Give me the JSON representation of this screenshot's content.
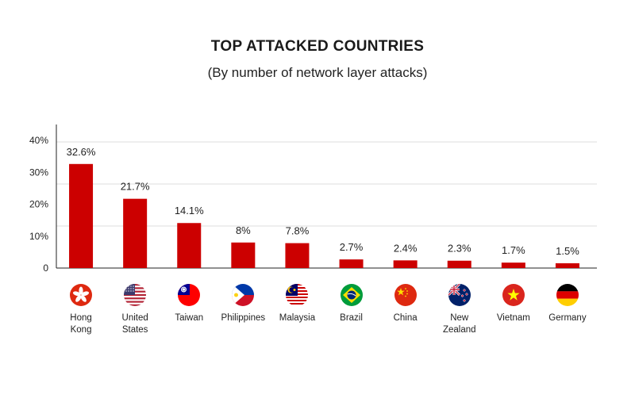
{
  "chart_data": {
    "type": "bar",
    "title": "TOP ATTACKED COUNTRIES",
    "subtitle": "(By number of network layer attacks)",
    "categories": [
      "Hong Kong",
      "United States",
      "Taiwan",
      "Philippines",
      "Malaysia",
      "Brazil",
      "China",
      "New Zealand",
      "Vietnam",
      "Germany"
    ],
    "category_lines": [
      [
        "Hong",
        "Kong"
      ],
      [
        "United",
        "States"
      ],
      [
        "Taiwan"
      ],
      [
        "Philippines"
      ],
      [
        "Malaysia"
      ],
      [
        "Brazil"
      ],
      [
        "China"
      ],
      [
        "New",
        "Zealand"
      ],
      [
        "Vietnam"
      ],
      [
        "Germany"
      ]
    ],
    "flag_icons": [
      "hong-kong-flag-icon",
      "united-states-flag-icon",
      "taiwan-flag-icon",
      "philippines-flag-icon",
      "malaysia-flag-icon",
      "brazil-flag-icon",
      "china-flag-icon",
      "new-zealand-flag-icon",
      "vietnam-flag-icon",
      "germany-flag-icon"
    ],
    "values": [
      32.6,
      21.7,
      14.1,
      8,
      7.8,
      2.7,
      2.4,
      2.3,
      1.7,
      1.5
    ],
    "value_labels": [
      "32.6%",
      "21.7%",
      "14.1%",
      "8%",
      "7.8%",
      "2.7%",
      "2.4%",
      "2.3%",
      "1.7%",
      "1.5%"
    ],
    "yticks": [
      0,
      10,
      20,
      30,
      40
    ],
    "ytick_labels": [
      "0",
      "10%",
      "20%",
      "30%",
      "40%"
    ],
    "ylim": [
      0,
      45
    ],
    "bar_color": "#cc0000",
    "grid": true,
    "legend": "none"
  }
}
